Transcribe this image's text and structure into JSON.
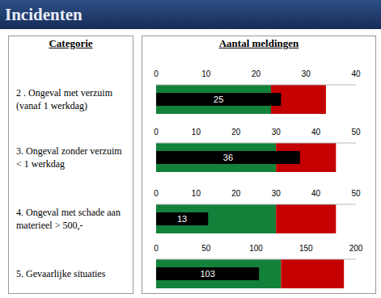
{
  "header": {
    "title": "Incidenten"
  },
  "columns": [
    "Categorie",
    "Aantal meldingen"
  ],
  "chart_data": [
    {
      "type": "bullet",
      "orientation": "horizontal",
      "categories": [
        "2 . Ongeval met verzuim (vanaf 1 werkdag)"
      ],
      "values": [
        25
      ],
      "color": "#000000",
      "data_labels": true,
      "tick_labels": "x",
      "bands": [
        {
          "from": 0,
          "to": 23,
          "color": "#12813a"
        },
        {
          "from": 23,
          "to": 34,
          "color": "#c40000"
        }
      ],
      "xlim": [
        0,
        40
      ],
      "xticks": [
        0,
        10,
        20,
        30,
        40
      ]
    },
    {
      "type": "bullet",
      "orientation": "horizontal",
      "categories": [
        "3. Ongeval zonder verzuim < 1 werkdag"
      ],
      "values": [
        36
      ],
      "color": "#000000",
      "data_labels": true,
      "tick_labels": "x",
      "bands": [
        {
          "from": 0,
          "to": 30,
          "color": "#12813a"
        },
        {
          "from": 30,
          "to": 45,
          "color": "#c40000"
        }
      ],
      "xlim": [
        0,
        50
      ],
      "xticks": [
        0,
        10,
        20,
        30,
        40,
        50
      ]
    },
    {
      "type": "bullet",
      "orientation": "horizontal",
      "categories": [
        "4. Ongeval met schade aan materieel > 500,-"
      ],
      "values": [
        13
      ],
      "color": "#000000",
      "data_labels": true,
      "tick_labels": "x",
      "bands": [
        {
          "from": 0,
          "to": 30,
          "color": "#12813a"
        },
        {
          "from": 30,
          "to": 45,
          "color": "#c40000"
        }
      ],
      "xlim": [
        0,
        50
      ],
      "xticks": [
        0,
        10,
        20,
        30,
        40,
        50
      ]
    },
    {
      "type": "bullet",
      "orientation": "horizontal",
      "categories": [
        "5. Gevaarlijke situaties"
      ],
      "values": [
        103
      ],
      "color": "#000000",
      "data_labels": true,
      "tick_labels": "x",
      "bands": [
        {
          "from": 0,
          "to": 125,
          "color": "#12813a"
        },
        {
          "from": 125,
          "to": 188,
          "color": "#c40000"
        }
      ],
      "xlim": [
        0,
        200
      ],
      "xticks": [
        0,
        50,
        100,
        150,
        200
      ]
    }
  ]
}
